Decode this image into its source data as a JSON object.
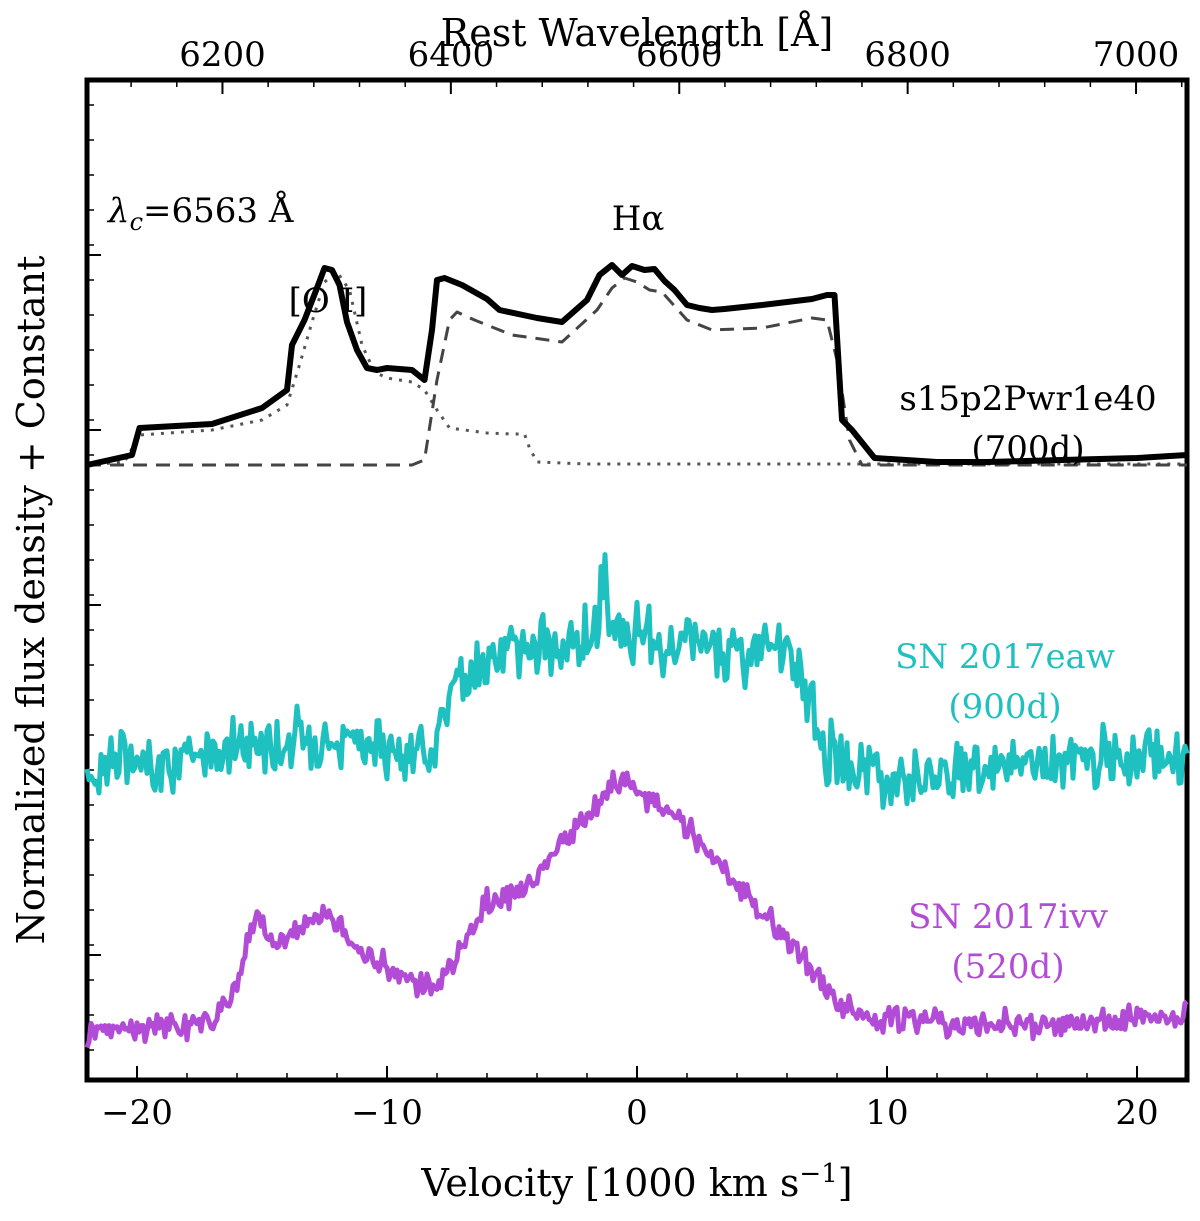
{
  "chart_data": {
    "type": "line",
    "title": "",
    "xlabel": "Velocity [1000 km s",
    "xlabel_sup": "−1",
    "xlabel_close": "]",
    "ylabel": "Normalized flux density + Constant",
    "top_xlabel": "Rest Wavelength [Å]",
    "xlim": [
      -22,
      22
    ],
    "ylim": [
      0,
      1
    ],
    "x_ticks": [
      -20,
      -10,
      0,
      10,
      20
    ],
    "x_tick_labels": [
      "−20",
      "−10",
      "0",
      "10",
      "20"
    ],
    "top_ticks": [
      6200,
      6400,
      6600,
      6800,
      7000
    ],
    "top_tick_labels": [
      "6200",
      "6400",
      "6600",
      "6800",
      "7000"
    ],
    "lambda_c": 6563,
    "grid": false,
    "annotations": {
      "lambda_prefix": "λ",
      "lambda_sub": "c",
      "lambda_value": "=6563 Å",
      "oi": "[O I]",
      "halpha": "Hα",
      "model_name": "s15p2Pwr1e40",
      "model_epoch": "(700d)",
      "eaw_name": "SN 2017eaw",
      "eaw_epoch": "(900d)",
      "ivv_name": "SN 2017ivv",
      "ivv_epoch": "(520d)"
    },
    "series": [
      {
        "name": "s15p2Pwr1e40 (700d) total",
        "color": "#000000",
        "x": [
          -22,
          -20.2,
          -19.9,
          -17,
          -15,
          -14,
          -13.8,
          -13.3,
          -12.8,
          -12.5,
          -12.2,
          -11.9,
          -11.6,
          -11.2,
          -10.8,
          -10.4,
          -10,
          -9,
          -8.5,
          -8.2,
          -8.0,
          -7.7,
          -7.3,
          -7.0,
          -6,
          -5.5,
          -4,
          -3,
          -2,
          -1.5,
          -1.0,
          -0.6,
          -0.2,
          0.3,
          0.7,
          1.1,
          1.5,
          2,
          2.5,
          3,
          3.5,
          5,
          7,
          7.6,
          7.9,
          8.2,
          8.6,
          9.5,
          12,
          14,
          17,
          20,
          22
        ],
        "y": [
          0.615,
          0.625,
          0.652,
          0.656,
          0.672,
          0.69,
          0.735,
          0.76,
          0.792,
          0.812,
          0.81,
          0.795,
          0.758,
          0.73,
          0.712,
          0.71,
          0.712,
          0.71,
          0.7,
          0.75,
          0.8,
          0.802,
          0.798,
          0.795,
          0.781,
          0.77,
          0.762,
          0.758,
          0.78,
          0.805,
          0.815,
          0.805,
          0.814,
          0.81,
          0.811,
          0.799,
          0.79,
          0.775,
          0.772,
          0.77,
          0.771,
          0.775,
          0.781,
          0.785,
          0.785,
          0.66,
          0.65,
          0.622,
          0.618,
          0.618,
          0.62,
          0.622,
          0.625
        ]
      },
      {
        "name": "[O I] component",
        "color": "#555555",
        "x": [
          -22,
          -20.5,
          -19.9,
          -17,
          -15,
          -14,
          -13.5,
          -13,
          -12.5,
          -12,
          -11.5,
          -11,
          -10.5,
          -10,
          -9,
          -8.5,
          -8,
          -7.5,
          -6,
          -5,
          -4.5,
          -4.3,
          -4,
          -2,
          0,
          5,
          10,
          22
        ],
        "y": [
          0.615,
          0.618,
          0.645,
          0.65,
          0.66,
          0.675,
          0.715,
          0.758,
          0.798,
          0.808,
          0.79,
          0.735,
          0.708,
          0.702,
          0.698,
          0.69,
          0.67,
          0.652,
          0.647,
          0.646,
          0.646,
          0.632,
          0.618,
          0.616,
          0.616,
          0.616,
          0.616,
          0.616
        ]
      },
      {
        "name": "Hα component",
        "color": "#444444",
        "x": [
          -22,
          -9,
          -8.5,
          -8.0,
          -7.5,
          -7.2,
          -6.5,
          -5,
          -3,
          -1.6,
          -1,
          -0.5,
          0,
          0.5,
          1,
          2,
          3,
          5,
          7,
          7.6,
          8.0,
          8.5,
          9,
          22
        ],
        "y": [
          0.615,
          0.615,
          0.62,
          0.7,
          0.76,
          0.768,
          0.76,
          0.745,
          0.738,
          0.77,
          0.792,
          0.802,
          0.798,
          0.79,
          0.788,
          0.76,
          0.75,
          0.752,
          0.762,
          0.76,
          0.72,
          0.64,
          0.615,
          0.615
        ]
      },
      {
        "name": "SN 2017eaw (900d)",
        "color": "#1fc0c0",
        "x": [
          -22,
          -21,
          -20,
          -19,
          -18,
          -17,
          -16,
          -15,
          -14,
          -13,
          -12.5,
          -12,
          -11,
          -10,
          -9,
          -8,
          -7.5,
          -7,
          -6,
          -5,
          -4,
          -3,
          -2,
          -1.5,
          -1.4,
          -1,
          -0.5,
          0,
          0.5,
          1,
          1.5,
          2,
          3,
          4,
          5,
          6,
          6.5,
          7,
          7.5,
          8,
          9,
          10,
          12,
          14,
          16,
          18,
          20,
          22
        ],
        "y": [
          0.3,
          0.325,
          0.315,
          0.32,
          0.318,
          0.33,
          0.336,
          0.338,
          0.336,
          0.345,
          0.344,
          0.338,
          0.34,
          0.325,
          0.318,
          0.355,
          0.385,
          0.395,
          0.425,
          0.435,
          0.43,
          0.435,
          0.44,
          0.455,
          0.52,
          0.445,
          0.435,
          0.44,
          0.435,
          0.418,
          0.44,
          0.44,
          0.438,
          0.43,
          0.43,
          0.428,
          0.41,
          0.375,
          0.335,
          0.315,
          0.31,
          0.305,
          0.31,
          0.312,
          0.316,
          0.32,
          0.323,
          0.325
        ]
      },
      {
        "name": "SN 2017ivv (520d)",
        "color": "#b24cd6",
        "x": [
          -22,
          -20,
          -18,
          -17,
          -16,
          -15.5,
          -15.2,
          -15,
          -14.5,
          -14,
          -13,
          -12.5,
          -12,
          -11.5,
          -11,
          -10,
          -9,
          -8,
          -7,
          -6,
          -5,
          -4,
          -3,
          -2,
          -1,
          -0.5,
          0,
          1,
          2,
          3,
          4,
          5,
          6,
          7,
          8,
          9,
          10,
          12,
          14,
          16,
          18,
          20,
          22
        ],
        "y": [
          0.05,
          0.052,
          0.055,
          0.06,
          0.1,
          0.15,
          0.165,
          0.148,
          0.135,
          0.145,
          0.16,
          0.162,
          0.155,
          0.14,
          0.125,
          0.11,
          0.1,
          0.095,
          0.13,
          0.175,
          0.19,
          0.205,
          0.235,
          0.265,
          0.29,
          0.3,
          0.29,
          0.27,
          0.25,
          0.225,
          0.195,
          0.165,
          0.14,
          0.11,
          0.08,
          0.065,
          0.062,
          0.058,
          0.055,
          0.056,
          0.058,
          0.06,
          0.065
        ]
      }
    ]
  }
}
